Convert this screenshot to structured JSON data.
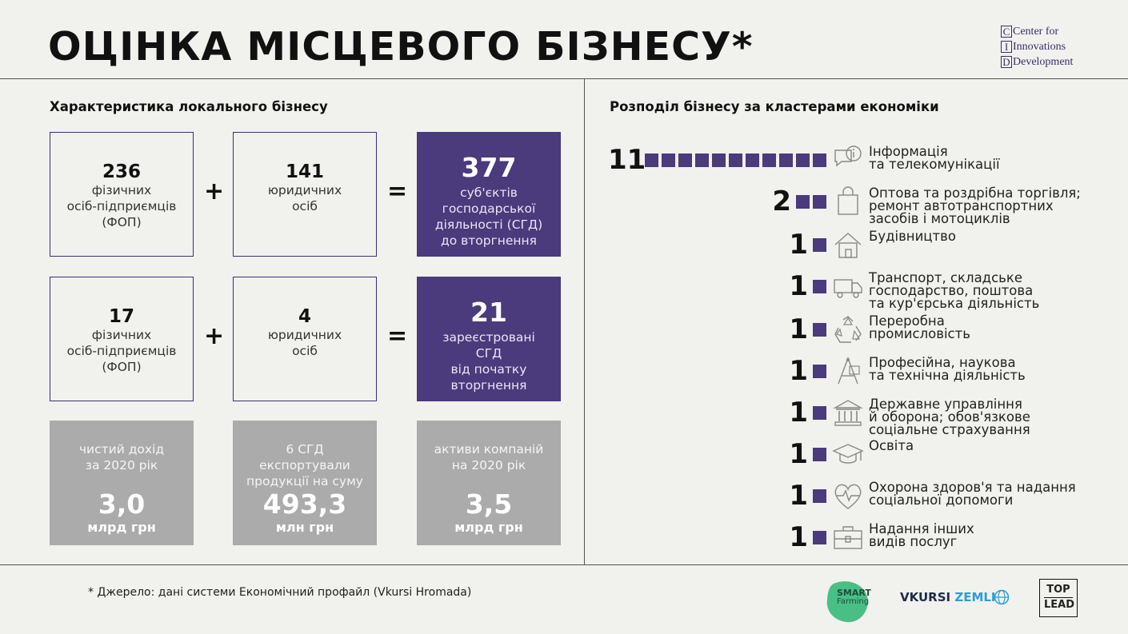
{
  "title": "ОЦІНКА МІСЦЕВОГО БІЗНЕСУ*",
  "cid_logo": {
    "line1": "Center for",
    "line2": "Innovations",
    "line3": "Development"
  },
  "left_section_title": "Характеристика локального бізнесу",
  "right_section_title": "Розподіл бізнесу за кластерами економіки",
  "row1": {
    "a": {
      "num": "236",
      "line1": "фізичних",
      "line2": "осіб-підприємців",
      "line3": "(ФОП)"
    },
    "b": {
      "num": "141",
      "line1": "юридичних",
      "line2": "осіб"
    },
    "c": {
      "num": "377",
      "line1": "суб'єктів",
      "line2": "господарської",
      "line3": "діяльності (СГД)",
      "line4": "до вторгнення"
    }
  },
  "row2": {
    "a": {
      "num": "17",
      "line1": "фізичних",
      "line2": "осіб-підприємців",
      "line3": "(ФОП)"
    },
    "b": {
      "num": "4",
      "line1": "юридичних",
      "line2": "осіб"
    },
    "c": {
      "num": "21",
      "line1": "зареєстровані",
      "line2": "СГД",
      "line3": "від початку",
      "line4": "вторгнення"
    }
  },
  "operators": {
    "plus": "+",
    "equals": "="
  },
  "stats": [
    {
      "line1": "чистий дохід",
      "line2": "за 2020 рік",
      "line3": "",
      "value": "3,0",
      "unit": "млрд грн"
    },
    {
      "line1": "6 СГД",
      "line2": "експортували",
      "line3": "продукції на суму",
      "value": "493,3",
      "unit": "млн грн"
    },
    {
      "line1": "активи компаній",
      "line2": "на 2020 рік",
      "line3": "",
      "value": "3,5",
      "unit": "млрд грн"
    }
  ],
  "clusters": [
    {
      "count": "11",
      "icon": "chat-info-icon",
      "line1": "Інформація",
      "line2": "та телекомунікації",
      "line3": ""
    },
    {
      "count": "2",
      "icon": "shopping-bag-icon",
      "line1": "Оптова та роздрібна торгівля;",
      "line2": "ремонт автотранспортних",
      "line3": "засобів і мотоциклів"
    },
    {
      "count": "1",
      "icon": "house-icon",
      "line1": "Будівництво",
      "line2": "",
      "line3": ""
    },
    {
      "count": "1",
      "icon": "truck-icon",
      "line1": "Транспорт, складське",
      "line2": "господарство, поштова",
      "line3": "та кур'єрська діяльність"
    },
    {
      "count": "1",
      "icon": "recycle-icon",
      "line1": "Переробна",
      "line2": "промисловість",
      "line3": ""
    },
    {
      "count": "1",
      "icon": "drafting-icon",
      "line1": "Професійна, наукова",
      "line2": "та технічна діяльність",
      "line3": ""
    },
    {
      "count": "1",
      "icon": "government-building-icon",
      "line1": "Державне управління",
      "line2": "й оборона; обов'язкове",
      "line3": "соціальне страхування"
    },
    {
      "count": "1",
      "icon": "graduation-cap-icon",
      "line1": "Освіта",
      "line2": "",
      "line3": ""
    },
    {
      "count": "1",
      "icon": "heart-pulse-icon",
      "line1": "Охорона здоров'я та надання",
      "line2": "соціальної допомоги",
      "line3": ""
    },
    {
      "count": "1",
      "icon": "toolbox-icon",
      "line1": "Надання інших",
      "line2": "видів послуг",
      "line3": ""
    }
  ],
  "footnote": "* Джерело: дані системи Економічний профайл (Vkursi Hromada)",
  "partners": {
    "smart": {
      "line1": "SMART",
      "line2": "Farming"
    },
    "vkursi": {
      "part1": "VKURSI",
      "part2": "ZEMLI"
    },
    "toplead": {
      "line1": "TOP",
      "line2": "LEAD"
    }
  },
  "colors": {
    "purple": "#4b3a7c",
    "gray_box": "#ababab",
    "background": "#f1f1ee",
    "green": "#2bb673"
  }
}
